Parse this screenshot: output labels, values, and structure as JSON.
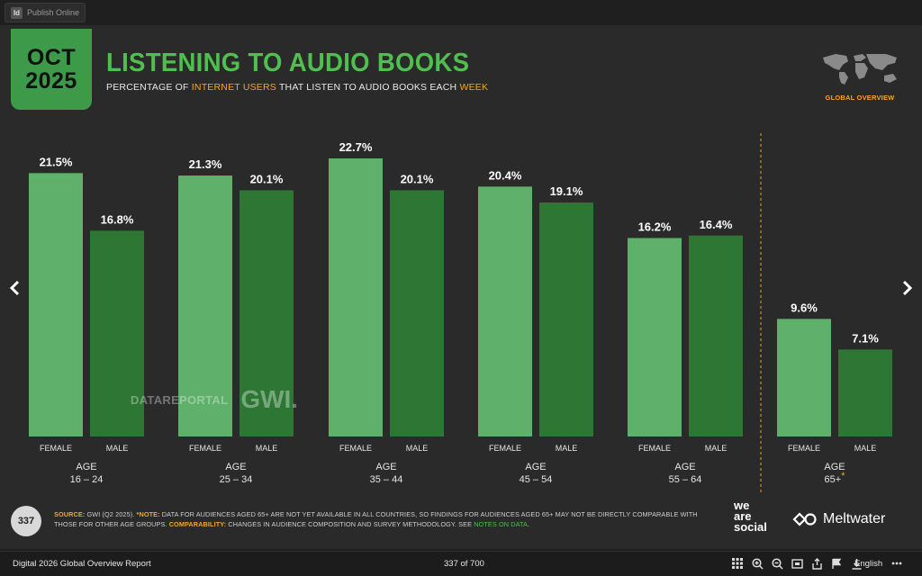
{
  "viewer": {
    "publish_label": "Publish Online",
    "publish_icon_text": "Id"
  },
  "slide": {
    "date_month": "OCT",
    "date_year": "2025",
    "title": "LISTENING TO AUDIO BOOKS",
    "subtitle_parts": [
      "PERCENTAGE OF ",
      "INTERNET USERS",
      " THAT LISTEN TO AUDIO BOOKS EACH ",
      "WEEK"
    ],
    "region_label": "GLOBAL OVERVIEW",
    "slide_number": "337",
    "footnote": {
      "source_label": "SOURCE:",
      "source_text": " GWI (Q2 2025). ",
      "note_label": "*NOTE:",
      "note_text": " DATA FOR AUDIENCES AGED 65+ ARE NOT YET AVAILABLE IN ALL COUNTRIES, SO FINDINGS FOR AUDIENCES AGED 65+ MAY NOT BE DIRECTLY COMPARABLE WITH THOSE FOR OTHER AGE GROUPS. ",
      "comp_label": "COMPARABILITY:",
      "comp_text": " CHANGES IN AUDIENCE COMPOSITION AND SURVEY METHODOLOGY. SEE ",
      "comp_link": "NOTES ON DATA",
      "comp_end": "."
    },
    "brand_was": [
      "we",
      "are",
      "social"
    ],
    "brand_meltwater": "Meltwater",
    "watermark_datareportal": "DATAREPORTAL",
    "watermark_gwi": "GWI."
  },
  "colors": {
    "female_bar": "#5eb06a",
    "male_bar": "#2d7634",
    "title_green": "#4fbf4f",
    "highlight_orange": "#f5a623"
  },
  "chart_data": {
    "type": "bar",
    "age_label": "AGE",
    "categories": [
      "16 – 24",
      "25 – 34",
      "35 – 44",
      "45 – 54",
      "55 – 64",
      "65+"
    ],
    "category_suffix_marks": [
      "",
      "",
      "",
      "",
      "",
      "*"
    ],
    "series": [
      {
        "name": "FEMALE",
        "values": [
          21.5,
          21.3,
          22.7,
          20.4,
          16.2,
          9.6
        ],
        "labels": [
          "21.5%",
          "21.3%",
          "22.7%",
          "20.4%",
          "16.2%",
          "9.6%"
        ]
      },
      {
        "name": "MALE",
        "values": [
          16.8,
          20.1,
          20.1,
          19.1,
          16.4,
          7.1
        ],
        "labels": [
          "16.8%",
          "20.1%",
          "20.1%",
          "19.1%",
          "16.4%",
          "7.1%"
        ]
      }
    ],
    "ylim": [
      0,
      22.7
    ],
    "grid": false,
    "separator_before_last_group": true
  },
  "toolbar": {
    "document_title": "Digital 2026 Global Overview Report",
    "page_indicator": "337 of 700",
    "language": "English",
    "icons": [
      "grid-icon",
      "zoom-in-icon",
      "zoom-out-icon",
      "fullscreen-icon",
      "share-icon",
      "flag-icon",
      "download-icon"
    ]
  }
}
